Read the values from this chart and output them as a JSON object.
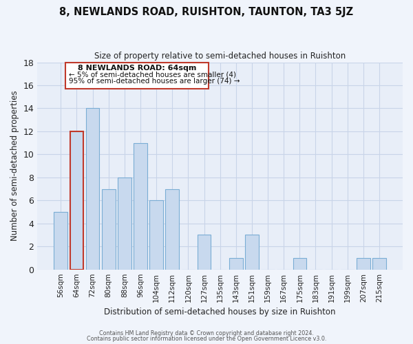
{
  "title": "8, NEWLANDS ROAD, RUISHTON, TAUNTON, TA3 5JZ",
  "subtitle": "Size of property relative to semi-detached houses in Ruishton",
  "xlabel": "Distribution of semi-detached houses by size in Ruishton",
  "ylabel": "Number of semi-detached properties",
  "categories": [
    "56sqm",
    "64sqm",
    "72sqm",
    "80sqm",
    "88sqm",
    "96sqm",
    "104sqm",
    "112sqm",
    "120sqm",
    "127sqm",
    "135sqm",
    "143sqm",
    "151sqm",
    "159sqm",
    "167sqm",
    "175sqm",
    "183sqm",
    "191sqm",
    "199sqm",
    "207sqm",
    "215sqm"
  ],
  "values": [
    5,
    12,
    14,
    7,
    8,
    11,
    6,
    7,
    0,
    3,
    0,
    1,
    3,
    0,
    0,
    1,
    0,
    0,
    0,
    1,
    1
  ],
  "highlight_index": 1,
  "highlight_color": "#c8d9ee",
  "highlight_edge_color": "#c0392b",
  "normal_color": "#c8d9ee",
  "bar_edge_color": "#7aadd4",
  "ylim": [
    0,
    18
  ],
  "yticks": [
    0,
    2,
    4,
    6,
    8,
    10,
    12,
    14,
    16,
    18
  ],
  "annotation_title": "8 NEWLANDS ROAD: 64sqm",
  "annotation_line1": "← 5% of semi-detached houses are smaller (4)",
  "annotation_line2": "95% of semi-detached houses are larger (74) →",
  "footer1": "Contains HM Land Registry data © Crown copyright and database right 2024.",
  "footer2": "Contains public sector information licensed under the Open Government Licence v3.0.",
  "bg_color": "#f0f4fb",
  "plot_bg_color": "#e8eef8",
  "grid_color": "#c8d4e8",
  "box_color": "#c0392b"
}
